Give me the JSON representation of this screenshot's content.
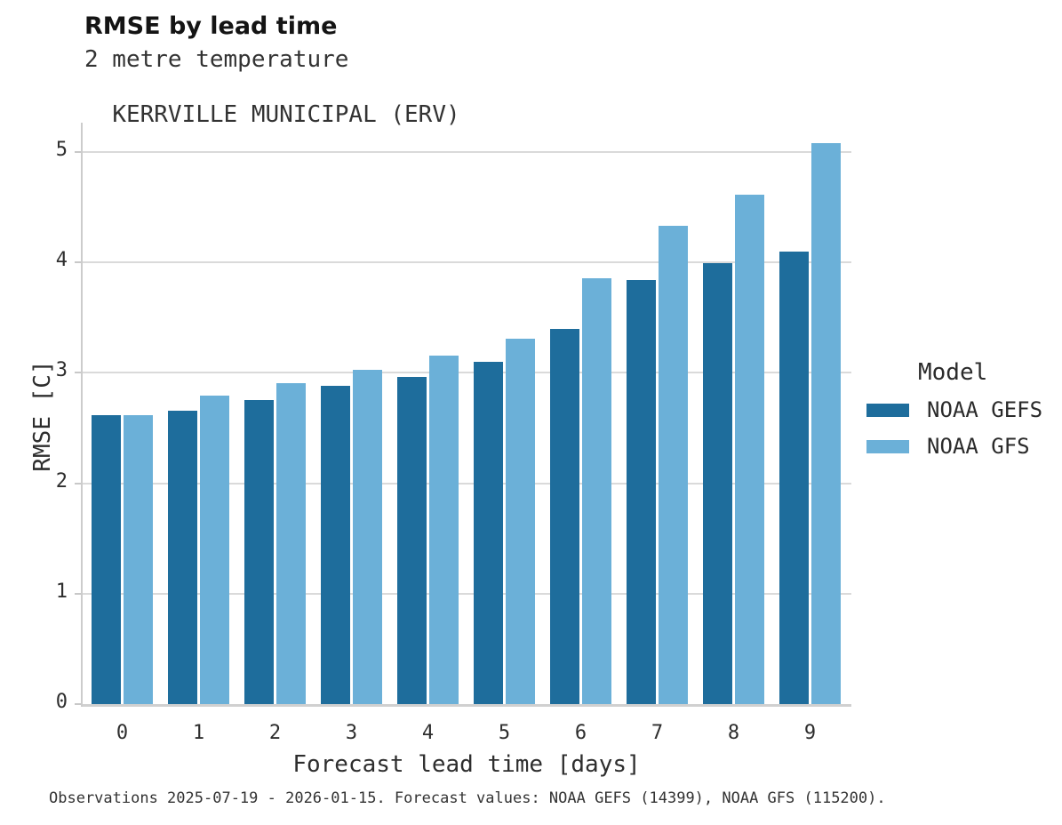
{
  "title": "RMSE by lead time",
  "subtitle_line1": "2 metre temperature",
  "subtitle_line2": "KERRVILLE MUNICIPAL (ERV)",
  "caption": "Observations 2025-07-19 - 2026-01-15. Forecast values: NOAA GEFS (14399), NOAA GFS (115200).",
  "legend": {
    "title": "Model",
    "items": [
      {
        "label": "NOAA GEFS",
        "color": "#1e6d9c"
      },
      {
        "label": "NOAA GFS",
        "color": "#6bb0d8"
      }
    ]
  },
  "colors": {
    "gefs_bar": "#1e6d9c",
    "gfs_bar": "#6bb0d8",
    "gridline": "#dadada",
    "axis_spine": "#cccccc",
    "text": "#2b2b2b"
  },
  "chart_data": {
    "type": "bar",
    "title": "RMSE by lead time",
    "subtitle": [
      "2 metre temperature",
      "KERRVILLE MUNICIPAL (ERV)"
    ],
    "categories": [
      "0",
      "1",
      "2",
      "3",
      "4",
      "5",
      "6",
      "7",
      "8",
      "9"
    ],
    "series": [
      {
        "name": "NOAA GEFS",
        "color": "#1e6d9c",
        "values": [
          2.62,
          2.66,
          2.75,
          2.88,
          2.96,
          3.1,
          3.4,
          3.84,
          3.99,
          4.1
        ]
      },
      {
        "name": "NOAA GFS",
        "color": "#6bb0d8",
        "values": [
          2.62,
          2.79,
          2.91,
          3.03,
          3.16,
          3.31,
          3.86,
          4.33,
          4.61,
          5.08
        ]
      }
    ],
    "xlabel": "Forecast lead time [days]",
    "ylabel": "RMSE [C]",
    "ylim": [
      0,
      5.27
    ],
    "yticks": [
      0,
      1,
      2,
      3,
      4,
      5
    ],
    "grid": true,
    "legend_title": "Model",
    "legend_position": "right"
  }
}
